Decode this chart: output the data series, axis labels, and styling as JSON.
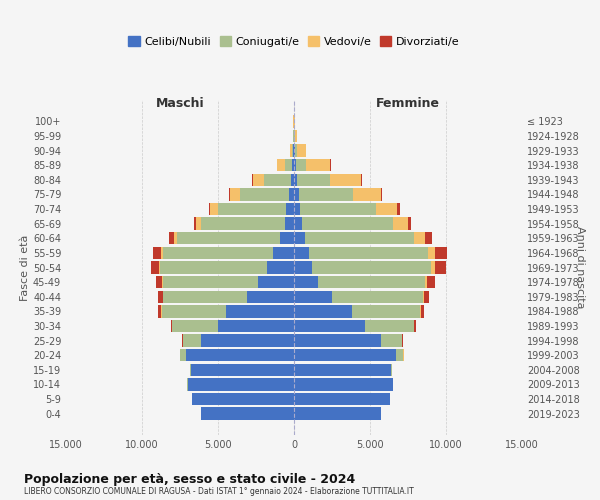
{
  "age_groups": [
    "0-4",
    "5-9",
    "10-14",
    "15-19",
    "20-24",
    "25-29",
    "30-34",
    "35-39",
    "40-44",
    "45-49",
    "50-54",
    "55-59",
    "60-64",
    "65-69",
    "70-74",
    "75-79",
    "80-84",
    "85-89",
    "90-94",
    "95-99",
    "100+"
  ],
  "birth_years": [
    "2019-2023",
    "2014-2018",
    "2009-2013",
    "2004-2008",
    "1999-2003",
    "1994-1998",
    "1989-1993",
    "1984-1988",
    "1979-1983",
    "1974-1978",
    "1969-1973",
    "1964-1968",
    "1959-1963",
    "1954-1958",
    "1949-1953",
    "1944-1948",
    "1939-1943",
    "1934-1938",
    "1929-1933",
    "1924-1928",
    "≤ 1923"
  ],
  "males": {
    "single": [
      6100,
      6700,
      7000,
      6800,
      7100,
      6100,
      5000,
      4500,
      3100,
      2400,
      1800,
      1400,
      900,
      600,
      500,
      350,
      200,
      100,
      50,
      30,
      20
    ],
    "married": [
      5,
      5,
      10,
      50,
      400,
      1200,
      3000,
      4200,
      5500,
      6200,
      7000,
      7200,
      6800,
      5500,
      4500,
      3200,
      1800,
      500,
      80,
      30,
      10
    ],
    "widowed": [
      0,
      0,
      0,
      5,
      5,
      10,
      20,
      30,
      50,
      80,
      100,
      150,
      200,
      350,
      500,
      650,
      700,
      500,
      150,
      20,
      5
    ],
    "divorced": [
      0,
      0,
      0,
      5,
      10,
      30,
      100,
      200,
      300,
      400,
      500,
      500,
      300,
      100,
      100,
      80,
      50,
      20,
      5,
      0,
      0
    ]
  },
  "females": {
    "single": [
      5700,
      6300,
      6500,
      6400,
      6700,
      5700,
      4700,
      3800,
      2500,
      1600,
      1200,
      1000,
      700,
      500,
      400,
      300,
      200,
      100,
      80,
      30,
      20
    ],
    "married": [
      5,
      5,
      10,
      60,
      500,
      1400,
      3200,
      4500,
      6000,
      7000,
      7800,
      7800,
      7200,
      6000,
      5000,
      3600,
      2200,
      700,
      100,
      30,
      10
    ],
    "widowed": [
      0,
      0,
      0,
      5,
      5,
      10,
      20,
      40,
      80,
      150,
      300,
      450,
      700,
      1000,
      1400,
      1800,
      2000,
      1600,
      600,
      150,
      40
    ],
    "divorced": [
      0,
      0,
      0,
      5,
      10,
      30,
      100,
      200,
      300,
      500,
      700,
      800,
      500,
      200,
      150,
      100,
      80,
      30,
      10,
      5,
      0
    ]
  },
  "colors": {
    "single": "#4472C4",
    "married": "#AABF8F",
    "widowed": "#F5C06A",
    "divorced": "#C0392B"
  },
  "legend_labels": [
    "Celibi/Nubili",
    "Coniugati/e",
    "Vedovi/e",
    "Divorziati/e"
  ],
  "title": "Popolazione per età, sesso e stato civile - 2024",
  "subtitle": "LIBERO CONSORZIO COMUNALE DI RAGUSA - Dati ISTAT 1° gennaio 2024 - Elaborazione TUTTITALIA.IT",
  "xlabel_left": "Maschi",
  "xlabel_right": "Femmine",
  "ylabel_left": "Fasce di età",
  "ylabel_right": "Anni di nascita",
  "xlim": 15000,
  "xticklabels": [
    "15.000",
    "10.000",
    "5.000",
    "0",
    "5.000",
    "10.000",
    "15.000"
  ],
  "background_color": "#f5f5f5",
  "grid_color": "#cccccc"
}
